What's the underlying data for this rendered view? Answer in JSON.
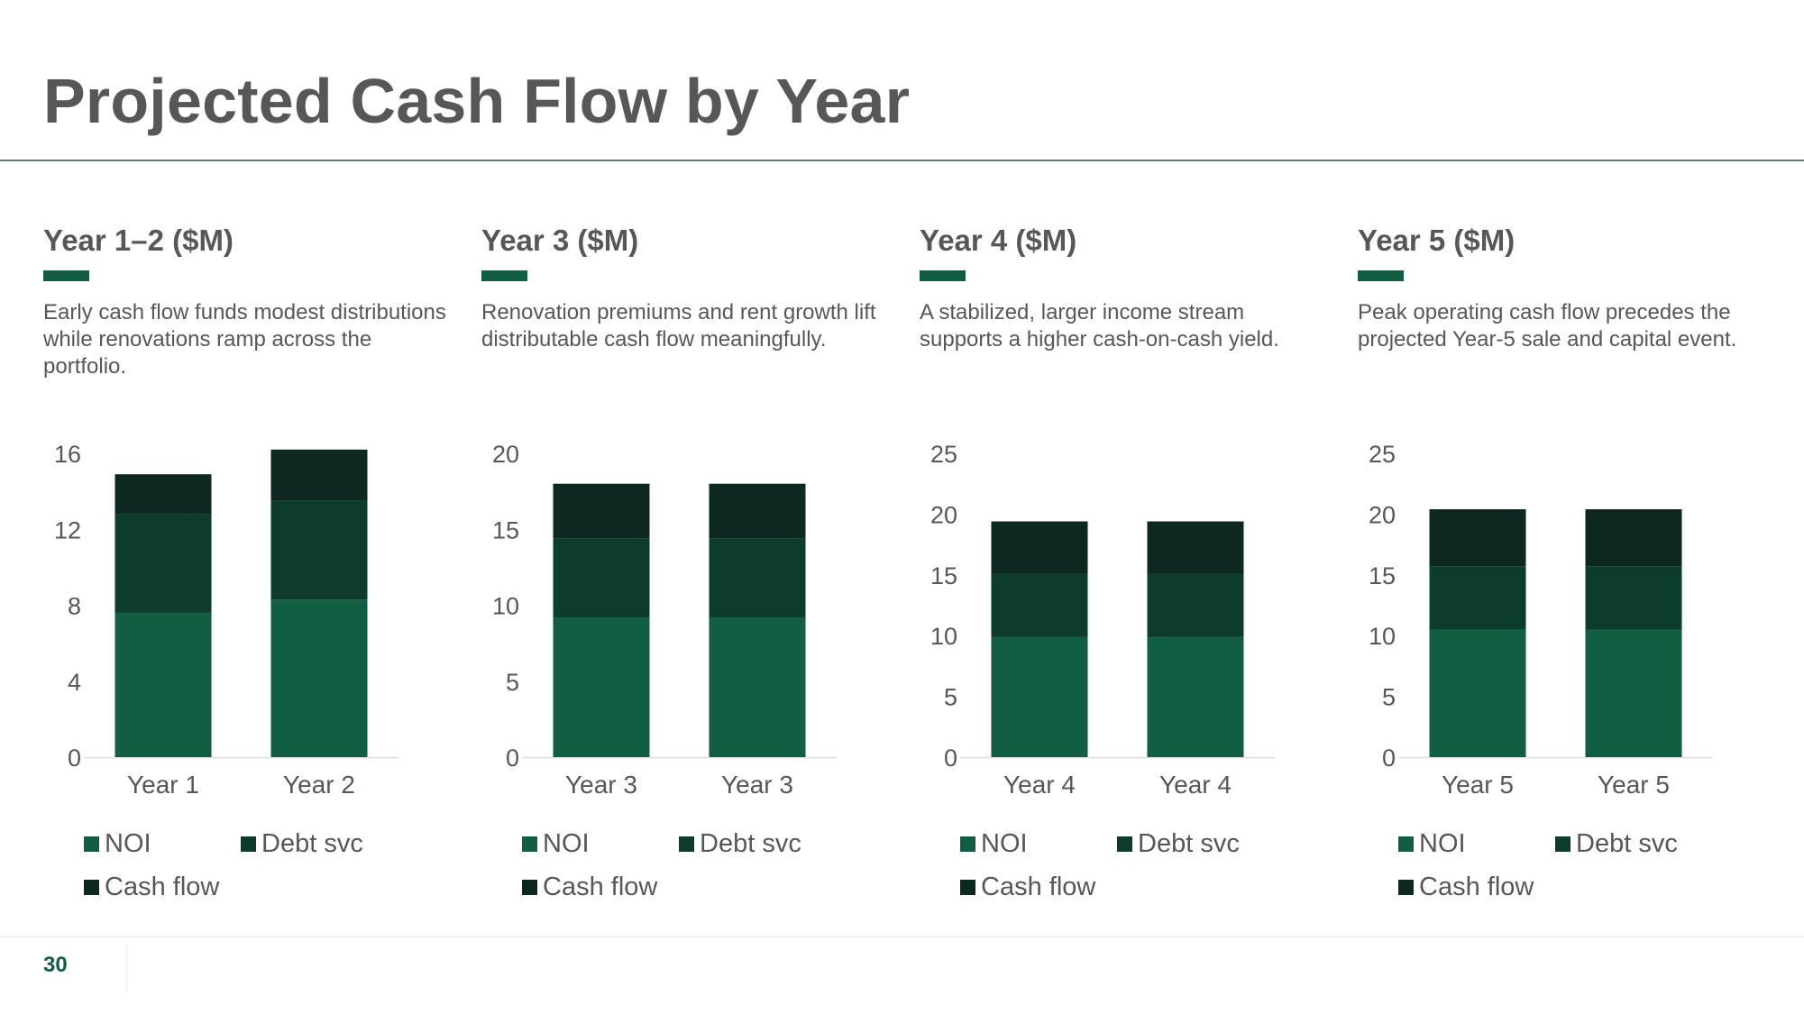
{
  "page": {
    "title": "Projected Cash Flow by Year",
    "page_number": "30"
  },
  "colors": {
    "noi": "#115e43",
    "debt_svc": "#0c3c2c",
    "cash_flow": "#0c2820",
    "accent": "#115e43",
    "text": "#575757",
    "axis_text": "#575757",
    "baseline": "#dddddd"
  },
  "panels": [
    {
      "heading": "Year 1–2 ($M)",
      "description": "Early cash flow funds modest distributions while renovations ramp across the portfolio."
    },
    {
      "heading": "Year 3 ($M)",
      "description": "Renovation premiums and rent growth lift distributable cash flow meaningfully."
    },
    {
      "heading": "Year 4 ($M)",
      "description": "A stabilized, larger income stream supports a higher cash-on-cash yield."
    },
    {
      "heading": "Year 5 ($M)",
      "description": "Peak operating cash flow precedes the projected Year-5 sale and capital event."
    }
  ],
  "chart_data": [
    {
      "type": "bar",
      "stacked": true,
      "categories": [
        "Year 1",
        "Year 2"
      ],
      "series": [
        {
          "name": "NOI",
          "values": [
            7.6,
            8.3
          ]
        },
        {
          "name": "Debt svc",
          "values": [
            5.2,
            5.2
          ]
        },
        {
          "name": "Cash flow",
          "values": [
            2.1,
            2.7
          ]
        }
      ],
      "ylim": [
        0,
        16
      ],
      "yticks": [
        0,
        4,
        8,
        12,
        16
      ],
      "legend": "bottom"
    },
    {
      "type": "bar",
      "stacked": true,
      "categories": [
        "Year 3",
        "Year 3"
      ],
      "series": [
        {
          "name": "NOI",
          "values": [
            9.2,
            9.2
          ]
        },
        {
          "name": "Debt svc",
          "values": [
            5.2,
            5.2
          ]
        },
        {
          "name": "Cash flow",
          "values": [
            3.6,
            3.6
          ]
        }
      ],
      "ylim": [
        0,
        20
      ],
      "yticks": [
        0,
        5,
        10,
        15,
        20
      ],
      "legend": "bottom"
    },
    {
      "type": "bar",
      "stacked": true,
      "categories": [
        "Year 4",
        "Year 4"
      ],
      "series": [
        {
          "name": "NOI",
          "values": [
            9.9,
            9.9
          ]
        },
        {
          "name": "Debt svc",
          "values": [
            5.2,
            5.2
          ]
        },
        {
          "name": "Cash flow",
          "values": [
            4.3,
            4.3
          ]
        }
      ],
      "ylim": [
        0,
        25
      ],
      "yticks": [
        0,
        5,
        10,
        15,
        20,
        25
      ],
      "legend": "bottom"
    },
    {
      "type": "bar",
      "stacked": true,
      "categories": [
        "Year 5",
        "Year 5"
      ],
      "series": [
        {
          "name": "NOI",
          "values": [
            10.5,
            10.5
          ]
        },
        {
          "name": "Debt svc",
          "values": [
            5.2,
            5.2
          ]
        },
        {
          "name": "Cash flow",
          "values": [
            4.7,
            4.7
          ]
        }
      ],
      "ylim": [
        0,
        25
      ],
      "yticks": [
        0,
        5,
        10,
        15,
        20,
        25
      ],
      "legend": "bottom"
    }
  ]
}
